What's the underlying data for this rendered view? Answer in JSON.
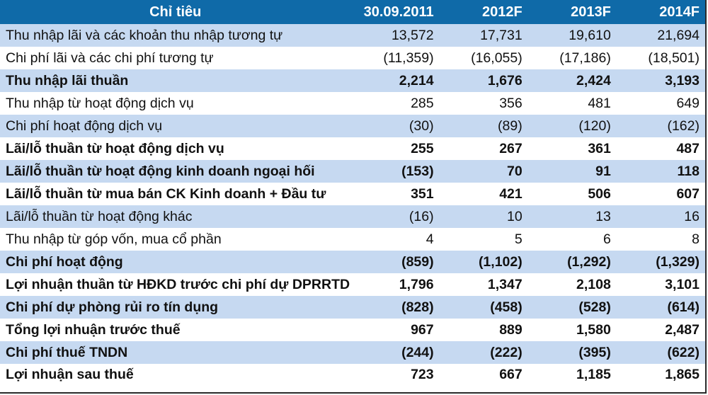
{
  "table": {
    "headers": [
      "Chỉ tiêu",
      "30.09.2011",
      "2012F",
      "2013F",
      "2014F"
    ],
    "rows": [
      {
        "label": "Thu nhập lãi và các khoản thu nhập tương tự",
        "values": [
          "13,572",
          "17,731",
          "19,610",
          "21,694"
        ],
        "bold": false
      },
      {
        "label": "Chi phí lãi và các chi phí tương tự",
        "values": [
          "(11,359)",
          "(16,055)",
          "(17,186)",
          "(18,501)"
        ],
        "bold": false
      },
      {
        "label": "Thu nhập lãi thuần",
        "values": [
          "2,214",
          "1,676",
          "2,424",
          "3,193"
        ],
        "bold": true
      },
      {
        "label": "Thu nhập từ hoạt động dịch vụ",
        "values": [
          "285",
          "356",
          "481",
          "649"
        ],
        "bold": false
      },
      {
        "label": "Chi phí hoạt động dịch vụ",
        "values": [
          "(30)",
          "(89)",
          "(120)",
          "(162)"
        ],
        "bold": false
      },
      {
        "label": "Lãi/lỗ thuần từ hoạt động dịch vụ",
        "values": [
          "255",
          "267",
          "361",
          "487"
        ],
        "bold": true
      },
      {
        "label": "Lãi/lỗ thuần từ hoạt động kinh doanh ngoại hối",
        "values": [
          "(153)",
          "70",
          "91",
          "118"
        ],
        "bold": true
      },
      {
        "label": "Lãi/lỗ thuần từ mua bán CK Kinh doanh + Đầu tư",
        "values": [
          "351",
          "421",
          "506",
          "607"
        ],
        "bold": true
      },
      {
        "label": "Lãi/lỗ thuần từ hoạt động khác",
        "values": [
          "(16)",
          "10",
          "13",
          "16"
        ],
        "bold": false
      },
      {
        "label": "Thu nhập từ góp vốn, mua cổ phần",
        "values": [
          "4",
          "5",
          "6",
          "8"
        ],
        "bold": false
      },
      {
        "label": "Chi phí hoạt động",
        "values": [
          "(859)",
          "(1,102)",
          "(1,292)",
          "(1,329)"
        ],
        "bold": true
      },
      {
        "label": "Lợi nhuận thuần từ HĐKD trước chi phí dự DPRRTD",
        "values": [
          "1,796",
          "1,347",
          "2,108",
          "3,101"
        ],
        "bold": true
      },
      {
        "label": "Chi phí dự phòng rủi ro tín dụng",
        "values": [
          "(828)",
          "(458)",
          "(528)",
          "(614)"
        ],
        "bold": true
      },
      {
        "label": "Tổng lợi nhuận trước thuế",
        "values": [
          "967",
          "889",
          "1,580",
          "2,487"
        ],
        "bold": true
      },
      {
        "label": "Chi phí thuế TNDN",
        "values": [
          "(244)",
          "(222)",
          "(395)",
          "(622)"
        ],
        "bold": true
      },
      {
        "label": "Lợi nhuận sau thuế",
        "values": [
          "723",
          "667",
          "1,185",
          "1,865"
        ],
        "bold": true
      }
    ]
  },
  "colors": {
    "header_bg": "#0f6aa8",
    "header_text": "#ffffff",
    "stripe": "#c6d9f1"
  }
}
